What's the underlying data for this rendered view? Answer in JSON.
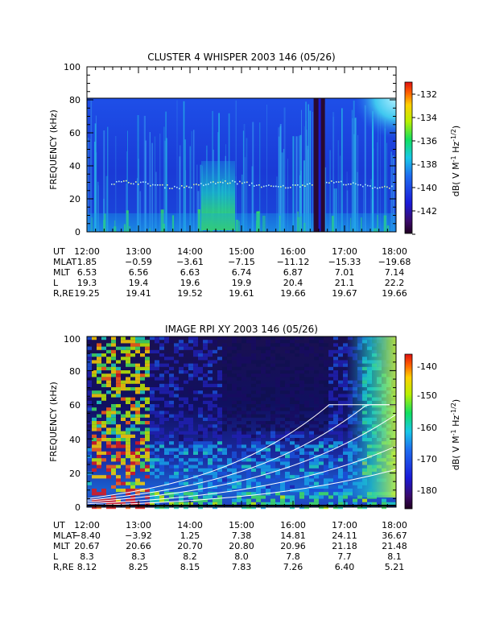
{
  "chart_data": [
    {
      "type": "heatmap",
      "title": "CLUSTER 4 WHISPER 2003 146 (05/26)",
      "ylabel": "FREQUENCY (kHz)",
      "ylim": [
        0,
        100
      ],
      "yticks": [
        "0",
        "20",
        "40",
        "60",
        "80",
        "100"
      ],
      "colorbar": {
        "label": "dB( V M-1 Hz-1/2)",
        "label_main": "dB( V M",
        "label_sup1": "-1",
        "label_mid": " Hz",
        "label_sup2": "-1/2",
        "label_end": ")",
        "range": [
          -143.5,
          -131.5
        ],
        "ticks": [
          "-132",
          "-134",
          "-136",
          "-138",
          "-140",
          "-142"
        ]
      },
      "x_times": [
        "12:00",
        "13:00",
        "14:00",
        "15:00",
        "16:00",
        "17:00",
        "18:00"
      ],
      "ephemeris": [
        {
          "label": "UT",
          "values": [
            "12:00",
            "13:00",
            "14:00",
            "15:00",
            "16:00",
            "17:00",
            "18:00"
          ]
        },
        {
          "label": "MLAT",
          "values": [
            "1.85",
            "−0.59",
            "−3.61",
            "−7.15",
            "−11.12",
            "−15.33",
            "−19.68"
          ]
        },
        {
          "label": "MLT",
          "values": [
            "6.53",
            "6.56",
            "6.63",
            "6.74",
            "6.87",
            "7.01",
            "7.14"
          ]
        },
        {
          "label": "L",
          "values": [
            "19.3",
            "19.4",
            "19.6",
            "19.9",
            "20.4",
            "21.1",
            "22.2"
          ]
        },
        {
          "label": "R,RE",
          "values": [
            "19.25",
            "19.41",
            "19.52",
            "19.61",
            "19.66",
            "19.67",
            "19.66"
          ]
        }
      ],
      "data_gap_hours": [
        16.4,
        16.62
      ]
    },
    {
      "type": "heatmap",
      "title": "IMAGE RPI XY 2003 146 (05/26)",
      "ylabel": "FREQUENCY (kHz)",
      "ylim": [
        0,
        100
      ],
      "yticks": [
        "0",
        "20",
        "40",
        "60",
        "80",
        "100"
      ],
      "colorbar": {
        "label": "dB( V M-1 Hz-1/2)",
        "label_main": "dB( V M",
        "label_sup1": "-1",
        "label_mid": " Hz",
        "label_sup2": "-1/2",
        "label_end": ")",
        "range": [
          -185,
          -136
        ],
        "ticks": [
          "-140",
          "-150",
          "-160",
          "-170",
          "-180"
        ]
      },
      "x_times": [
        "12:00",
        "13:00",
        "14:00",
        "15:00",
        "16:00",
        "17:00",
        "18:00"
      ],
      "ephemeris": [
        {
          "label": "UT",
          "values": [
            "12:00",
            "13:00",
            "14:00",
            "15:00",
            "16:00",
            "17:00",
            "18:00"
          ]
        },
        {
          "label": "MLAT",
          "values": [
            "−8.40",
            "−3.92",
            "1.25",
            "7.38",
            "14.81",
            "24.11",
            "36.67"
          ]
        },
        {
          "label": "MLT",
          "values": [
            "20.67",
            "20.66",
            "20.70",
            "20.80",
            "20.96",
            "21.18",
            "21.48"
          ]
        },
        {
          "label": "L",
          "values": [
            "8.3",
            "8.3",
            "8.2",
            "8.0",
            "7.8",
            "7.7",
            "8.1"
          ]
        },
        {
          "label": "R,RE",
          "values": [
            "8.12",
            "8.25",
            "8.15",
            "7.83",
            "7.26",
            "6.40",
            "5.21"
          ]
        }
      ]
    }
  ]
}
